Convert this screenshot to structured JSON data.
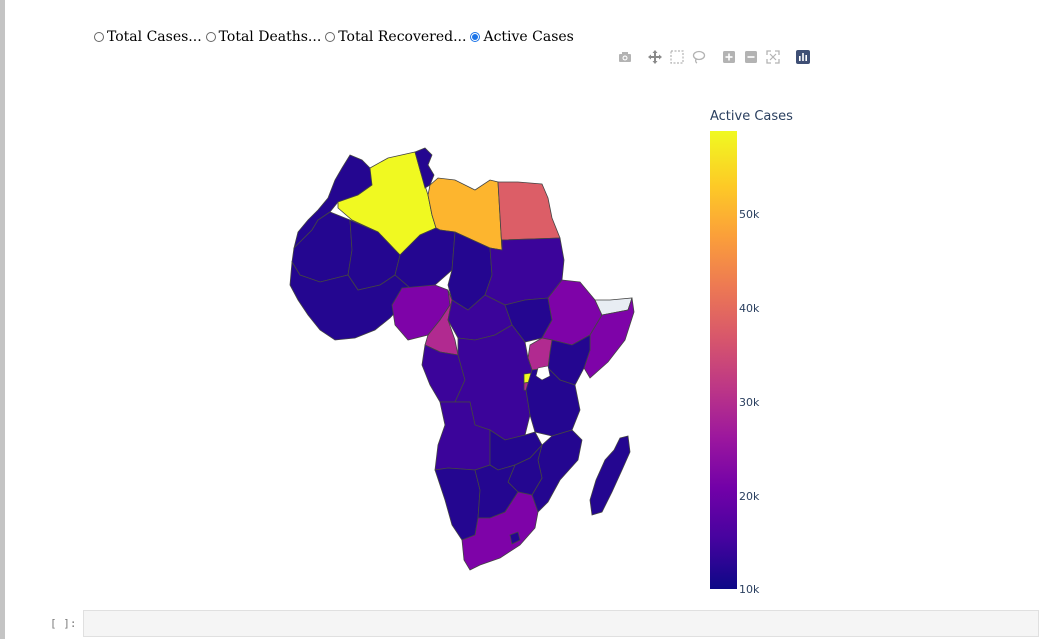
{
  "radio_options": [
    {
      "label": "Total Cases...",
      "checked": false
    },
    {
      "label": "Total Deaths...",
      "checked": false
    },
    {
      "label": "Total Recovered...",
      "checked": false
    },
    {
      "label": "Active Cases",
      "checked": true
    }
  ],
  "modebar": {
    "icons": [
      "camera-icon",
      "pan-icon",
      "box-select-icon",
      "lasso-icon",
      "zoom-in-icon",
      "zoom-out-icon",
      "autoscale-icon",
      "plotly-logo-icon"
    ]
  },
  "colorbar": {
    "title": "Active Cases",
    "ticks": [
      "50k",
      "40k",
      "30k",
      "20k",
      "10k"
    ],
    "colorscale": [
      "#0d0887",
      "#46039f",
      "#7201a8",
      "#9c179e",
      "#bd3786",
      "#d8576b",
      "#ed7953",
      "#fb9f3a",
      "#fdca26",
      "#f0f921"
    ]
  },
  "map": {
    "region": "Africa",
    "colors": {
      "low": "#240690",
      "lowmid": "#3b049a",
      "mid": "#7e03a8",
      "midhigh": "#b12a90",
      "high": "#dc5e67",
      "orange": "#fdb52e",
      "yellow": "#f0f921",
      "nodata": "#e8edf3"
    }
  },
  "cell": {
    "prompt": "[ ]:"
  }
}
